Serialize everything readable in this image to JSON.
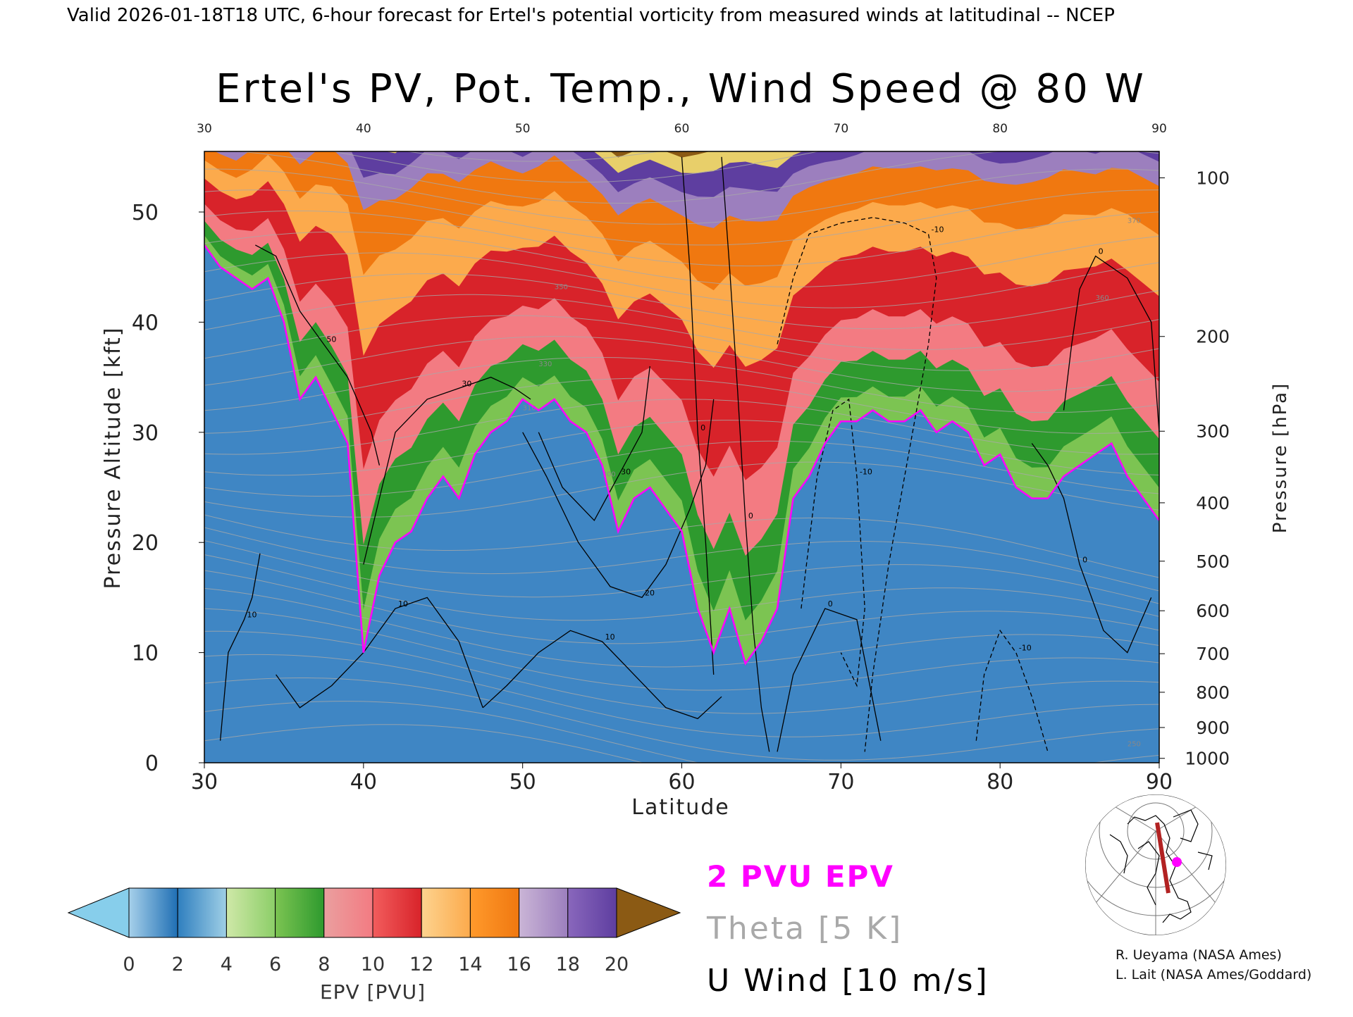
{
  "header": {
    "valid_line": "Valid 2026-01-18T18 UTC, 6-hour forecast for Ertel's potential vorticity from measured winds at latitudinal -- NCEP"
  },
  "chart_data": {
    "type": "heatmap",
    "title": "Ertel's PV, Pot. Temp., Wind Speed @ 80 W",
    "xlabel": "Latitude",
    "ylabel": "Pressure Altitude [kft]",
    "y2label": "Pressure [hPa]",
    "xlim": [
      30,
      90
    ],
    "ylim": [
      0,
      55.5
    ],
    "x_ticks": [
      30,
      40,
      50,
      60,
      70,
      80,
      90
    ],
    "x_tick_labels": [
      "30",
      "40",
      "50",
      "60",
      "70",
      "80",
      "90"
    ],
    "top_tick_labels": [
      "30",
      "40",
      "50",
      "60",
      "70",
      "80",
      "90"
    ],
    "y_ticks": [
      0,
      10,
      20,
      30,
      40,
      50
    ],
    "y_tick_labels": [
      "0",
      "10",
      "20",
      "30",
      "40",
      "50"
    ],
    "pressure_ticks": [
      {
        "label": "100",
        "kft": 53.1
      },
      {
        "label": "200",
        "kft": 38.7
      },
      {
        "label": "300",
        "kft": 30.1
      },
      {
        "label": "400",
        "kft": 23.6
      },
      {
        "label": "500",
        "kft": 18.3
      },
      {
        "label": "600",
        "kft": 13.8
      },
      {
        "label": "700",
        "kft": 9.9
      },
      {
        "label": "800",
        "kft": 6.4
      },
      {
        "label": "900",
        "kft": 3.2
      },
      {
        "label": "1000",
        "kft": 0.4
      }
    ],
    "pv_boundary_2pvu": {
      "lat": [
        30,
        31,
        32,
        33,
        34,
        35,
        36,
        37,
        38,
        39,
        40,
        41,
        42,
        43,
        44,
        45,
        46,
        47,
        48,
        49,
        50,
        51,
        52,
        53,
        54,
        55,
        56,
        57,
        58,
        59,
        60,
        61,
        62,
        63,
        64,
        65,
        66,
        67,
        68,
        69,
        70,
        71,
        72,
        73,
        74,
        75,
        76,
        77,
        78,
        79,
        80,
        81,
        82,
        83,
        84,
        85,
        86,
        87,
        88,
        89,
        90
      ],
      "kft": [
        47,
        45,
        44,
        43,
        44,
        40,
        33,
        35,
        32,
        29,
        10,
        17,
        20,
        21,
        24,
        26,
        24,
        28,
        30,
        31,
        33,
        32,
        33,
        31,
        30,
        27,
        21,
        24,
        25,
        23,
        21,
        14,
        10,
        14,
        9,
        11,
        14,
        24,
        26,
        29,
        31,
        31,
        32,
        31,
        31,
        32,
        30,
        31,
        30,
        27,
        28,
        25,
        24,
        24,
        26,
        27,
        28,
        29,
        26,
        24,
        22
      ]
    },
    "tropopause_top_kft": {
      "lat": [
        30,
        32,
        34,
        36,
        38,
        40,
        42,
        44,
        46,
        48,
        50,
        52,
        54,
        56,
        58,
        60,
        62,
        64,
        66,
        68,
        70,
        72,
        74,
        76,
        78,
        80,
        82,
        84,
        86,
        88,
        90
      ],
      "kft": [
        52,
        51,
        54,
        53,
        55,
        53,
        52,
        54,
        53,
        54,
        52,
        54,
        52,
        50,
        51,
        50,
        51,
        52,
        51,
        52,
        52,
        53,
        53,
        53,
        53,
        52,
        53,
        54,
        53,
        54,
        53
      ]
    },
    "u_wind_contours": [
      {
        "level": "50",
        "lat": [
          33.2,
          34.5,
          36.0,
          37.5,
          39.0,
          40.5,
          41.0
        ],
        "kft": [
          47.0,
          46.0,
          41.0,
          38.0,
          35.0,
          30.0,
          27.0
        ]
      },
      {
        "level": "30",
        "lat": [
          40.0,
          41.0,
          42.0,
          44.0,
          46.0,
          48.0,
          49.5,
          50.5
        ],
        "kft": [
          18.0,
          24.0,
          30.0,
          33.0,
          34.0,
          35.0,
          34.0,
          33.0
        ]
      },
      {
        "level": "30",
        "lat": [
          51.0,
          52.5,
          54.5,
          56.0,
          57.5,
          58.0
        ],
        "kft": [
          30.0,
          25.0,
          22.0,
          26.0,
          30.0,
          36.0
        ]
      },
      {
        "level": "20",
        "lat": [
          50.0,
          51.5,
          53.5,
          55.5,
          57.5,
          59.0,
          60.5,
          61.5,
          62.0
        ],
        "kft": [
          30.0,
          26.0,
          20.0,
          16.0,
          15.0,
          18.0,
          23.0,
          27.0,
          33.0
        ]
      },
      {
        "level": "10",
        "lat": [
          34.5,
          36.0,
          38.0,
          40.0,
          42.0,
          44.0,
          46.0,
          47.5
        ],
        "kft": [
          8.0,
          5.0,
          7.0,
          10.0,
          14.0,
          15.0,
          11.0,
          5.0
        ]
      },
      {
        "level": "10",
        "lat": [
          47.5,
          49.0,
          51.0,
          53.0,
          55.0,
          57.0,
          59.0,
          61.0,
          62.5
        ],
        "kft": [
          5.0,
          7.0,
          10.0,
          12.0,
          11.0,
          8.0,
          5.0,
          4.0,
          6.0
        ]
      },
      {
        "level": "10",
        "lat": [
          31.0,
          31.5,
          32.5,
          33.0,
          33.5
        ],
        "kft": [
          2.0,
          10.0,
          13.0,
          15.0,
          19.0
        ]
      },
      {
        "level": "0",
        "lat": [
          62.5,
          63.0,
          63.5,
          64.0,
          64.5,
          65.0,
          65.5
        ],
        "kft": [
          55.0,
          45.0,
          34.0,
          22.0,
          12.0,
          5.0,
          1.0
        ]
      },
      {
        "level": "0",
        "lat": [
          60.0,
          60.5,
          61.0,
          61.5,
          62.0
        ],
        "kft": [
          55.0,
          45.0,
          30.0,
          20.0,
          8.0
        ]
      },
      {
        "level": "0",
        "lat": [
          66.0,
          67.0,
          69.0,
          71.0,
          72.5
        ],
        "kft": [
          1.0,
          8.0,
          14.0,
          13.0,
          2.0
        ]
      },
      {
        "level": "0",
        "lat": [
          84.0,
          84.5,
          85.0,
          86.0,
          88.0,
          89.5,
          90.0
        ],
        "kft": [
          32.0,
          38.0,
          43.0,
          46.0,
          44.0,
          40.0,
          30.0
        ]
      },
      {
        "level": "0",
        "lat": [
          82.0,
          83.0,
          84.0,
          85.0,
          86.5,
          88.0,
          89.5
        ],
        "kft": [
          29.0,
          27.0,
          24.0,
          18.0,
          12.0,
          10.0,
          15.0
        ]
      }
    ],
    "u_wind_dashed_contours": [
      {
        "level": "-10",
        "lat": [
          66.0,
          67.0,
          68.0,
          70.0,
          72.0,
          74.0,
          75.5,
          76.0,
          75.5,
          74.5,
          73.0,
          72.0,
          71.5
        ],
        "kft": [
          38.0,
          44.0,
          48.0,
          49.0,
          49.5,
          49.0,
          48.0,
          44.0,
          38.0,
          30.0,
          18.0,
          8.0,
          1.0
        ]
      },
      {
        "level": "-10",
        "lat": [
          67.5,
          68.5,
          69.5,
          70.5,
          71.0,
          71.5,
          71.0,
          70.0
        ],
        "kft": [
          14.0,
          26.0,
          32.0,
          33.0,
          26.0,
          14.0,
          7.0,
          10.0
        ]
      },
      {
        "level": "-10",
        "lat": [
          78.5,
          79.0,
          80.0,
          81.0,
          82.0,
          83.0
        ],
        "kft": [
          2.0,
          8.0,
          12.0,
          10.0,
          6.0,
          1.0
        ]
      }
    ],
    "theta_labels": [
      "310",
      "300",
      "350",
      "360",
      "370",
      "330",
      "250"
    ],
    "colorbar": {
      "label": "EPV [PVU]",
      "ticks": [
        "0",
        "2",
        "4",
        "6",
        "8",
        "10",
        "12",
        "14",
        "16",
        "18",
        "20"
      ],
      "under_color": "#87ceeb",
      "over_color": "#8b5a14",
      "bands": [
        [
          "#a6d0ea",
          "#1f6fb4"
        ],
        [
          "#2f7fbf",
          "#9fcfe6"
        ],
        [
          "#cfe8a8",
          "#8cce68"
        ],
        [
          "#7cc452",
          "#2e9a2e"
        ],
        [
          "#ea9f9f",
          "#f37b82"
        ],
        [
          "#f25d5d",
          "#d8232a"
        ],
        [
          "#fdd38f",
          "#fcaa4c"
        ],
        [
          "#ff9a2c",
          "#f07810"
        ],
        [
          "#cab5d6",
          "#9c7fbe"
        ],
        [
          "#8967bc",
          "#5e3ea0"
        ],
        [
          "#fff3a0",
          "#e8cf6a"
        ]
      ],
      "stop_values": [
        0,
        2,
        4,
        6,
        8,
        10,
        12,
        14,
        16,
        18,
        20
      ]
    },
    "legend": {
      "pv": "2 PVU EPV",
      "theta": "Theta [5 K]",
      "wind": "U Wind [10 m/s]",
      "pv_color": "#ff00ff",
      "theta_color": "#a9a9a9",
      "wind_color": "#000000"
    }
  },
  "credits": {
    "line1": "R. Ueyama (NASA Ames)",
    "line2": "L. Lait (NASA Ames/Goddard)"
  },
  "map_inset": {
    "track_color": "#b22222",
    "marker_color": "#ff00ff"
  }
}
